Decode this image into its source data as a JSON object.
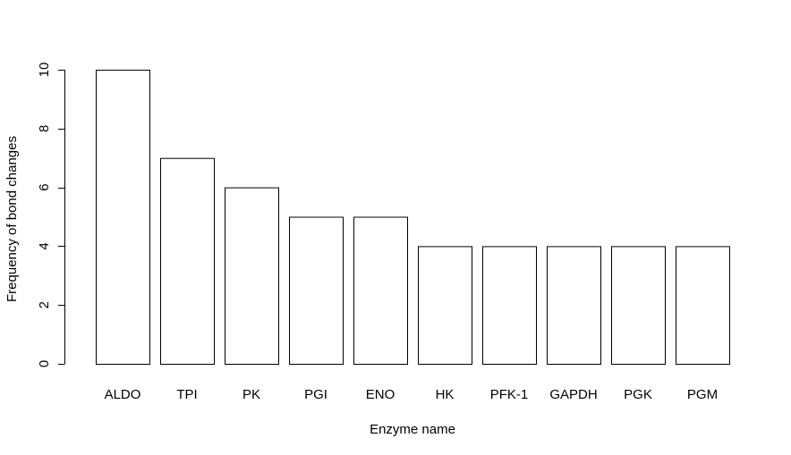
{
  "chart_data": {
    "type": "bar",
    "title": "",
    "xlabel": "Enzyme name",
    "ylabel": "Frequency of bond changes",
    "categories": [
      "ALDO",
      "TPI",
      "PK",
      "PGI",
      "ENO",
      "HK",
      "PFK-1",
      "GAPDH",
      "PGK",
      "PGM"
    ],
    "values": [
      10,
      7,
      6,
      5,
      5,
      4,
      4,
      4,
      4,
      4
    ],
    "ylim": [
      0,
      10
    ],
    "yticks": [
      0,
      2,
      4,
      6,
      8,
      10
    ],
    "grid": false,
    "legend": "none",
    "bar_fill": "#ffffff",
    "bar_stroke": "#000000"
  }
}
